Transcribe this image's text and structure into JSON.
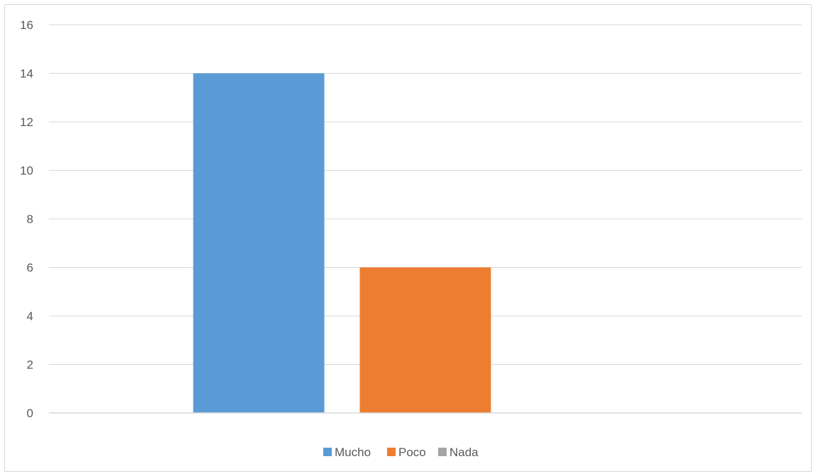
{
  "chart_data": {
    "type": "bar",
    "title": "",
    "xlabel": "",
    "ylabel": "",
    "ylim": [
      0,
      16
    ],
    "yticks": [
      0,
      2,
      4,
      6,
      8,
      10,
      12,
      14,
      16
    ],
    "grid": true,
    "legend_position": "bottom",
    "categories": [
      ""
    ],
    "series": [
      {
        "name": "Mucho",
        "values": [
          14
        ],
        "color": "#5b9bd5"
      },
      {
        "name": "Poco",
        "values": [
          6
        ],
        "color": "#ed7d31"
      },
      {
        "name": "Nada",
        "values": [
          0
        ],
        "color": "#a5a5a5"
      }
    ]
  }
}
